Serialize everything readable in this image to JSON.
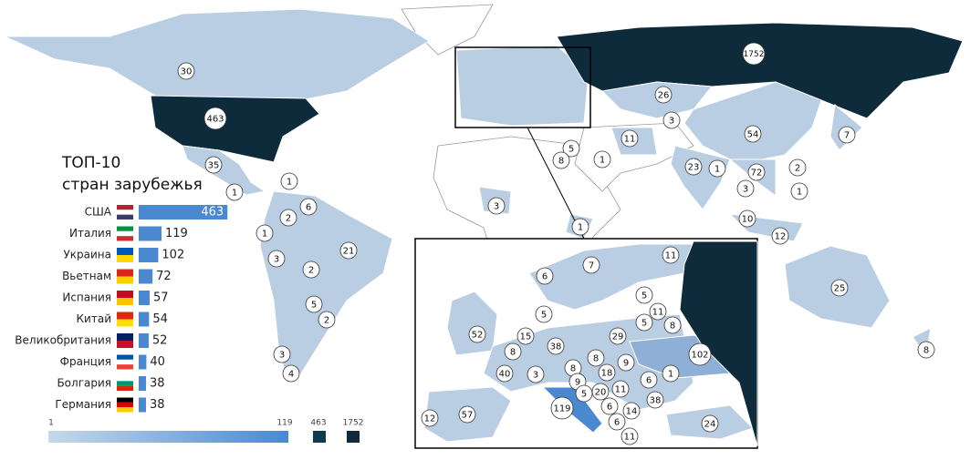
{
  "title": "ТОП-10",
  "subtitle": "стран зарубежья",
  "top10": {
    "countries": [
      "США",
      "Италия",
      "Украина",
      "Вьетнам",
      "Испания",
      "Китай",
      "Великобритания",
      "Франция",
      "Болгария",
      "Германия"
    ],
    "values": [
      463,
      119,
      102,
      72,
      57,
      54,
      52,
      40,
      38,
      38
    ]
  },
  "legend": {
    "ticks": [
      1,
      119,
      463,
      1752
    ]
  },
  "map_labels": [
    30,
    463,
    35,
    1,
    1,
    6,
    2,
    1,
    3,
    21,
    2,
    5,
    2,
    3,
    4,
    1752,
    26,
    3,
    11,
    54,
    7,
    5,
    8,
    1,
    23,
    1,
    72,
    2,
    3,
    1,
    10,
    12,
    25,
    8,
    3,
    1
  ],
  "inset_labels": [
    6,
    7,
    11,
    52,
    5,
    15,
    38,
    29,
    5,
    11,
    5,
    8,
    102,
    8,
    8,
    40,
    3,
    8,
    9,
    18,
    9,
    6,
    1,
    5,
    20,
    11,
    119,
    6,
    14,
    38,
    12,
    57,
    6,
    11,
    24
  ]
}
